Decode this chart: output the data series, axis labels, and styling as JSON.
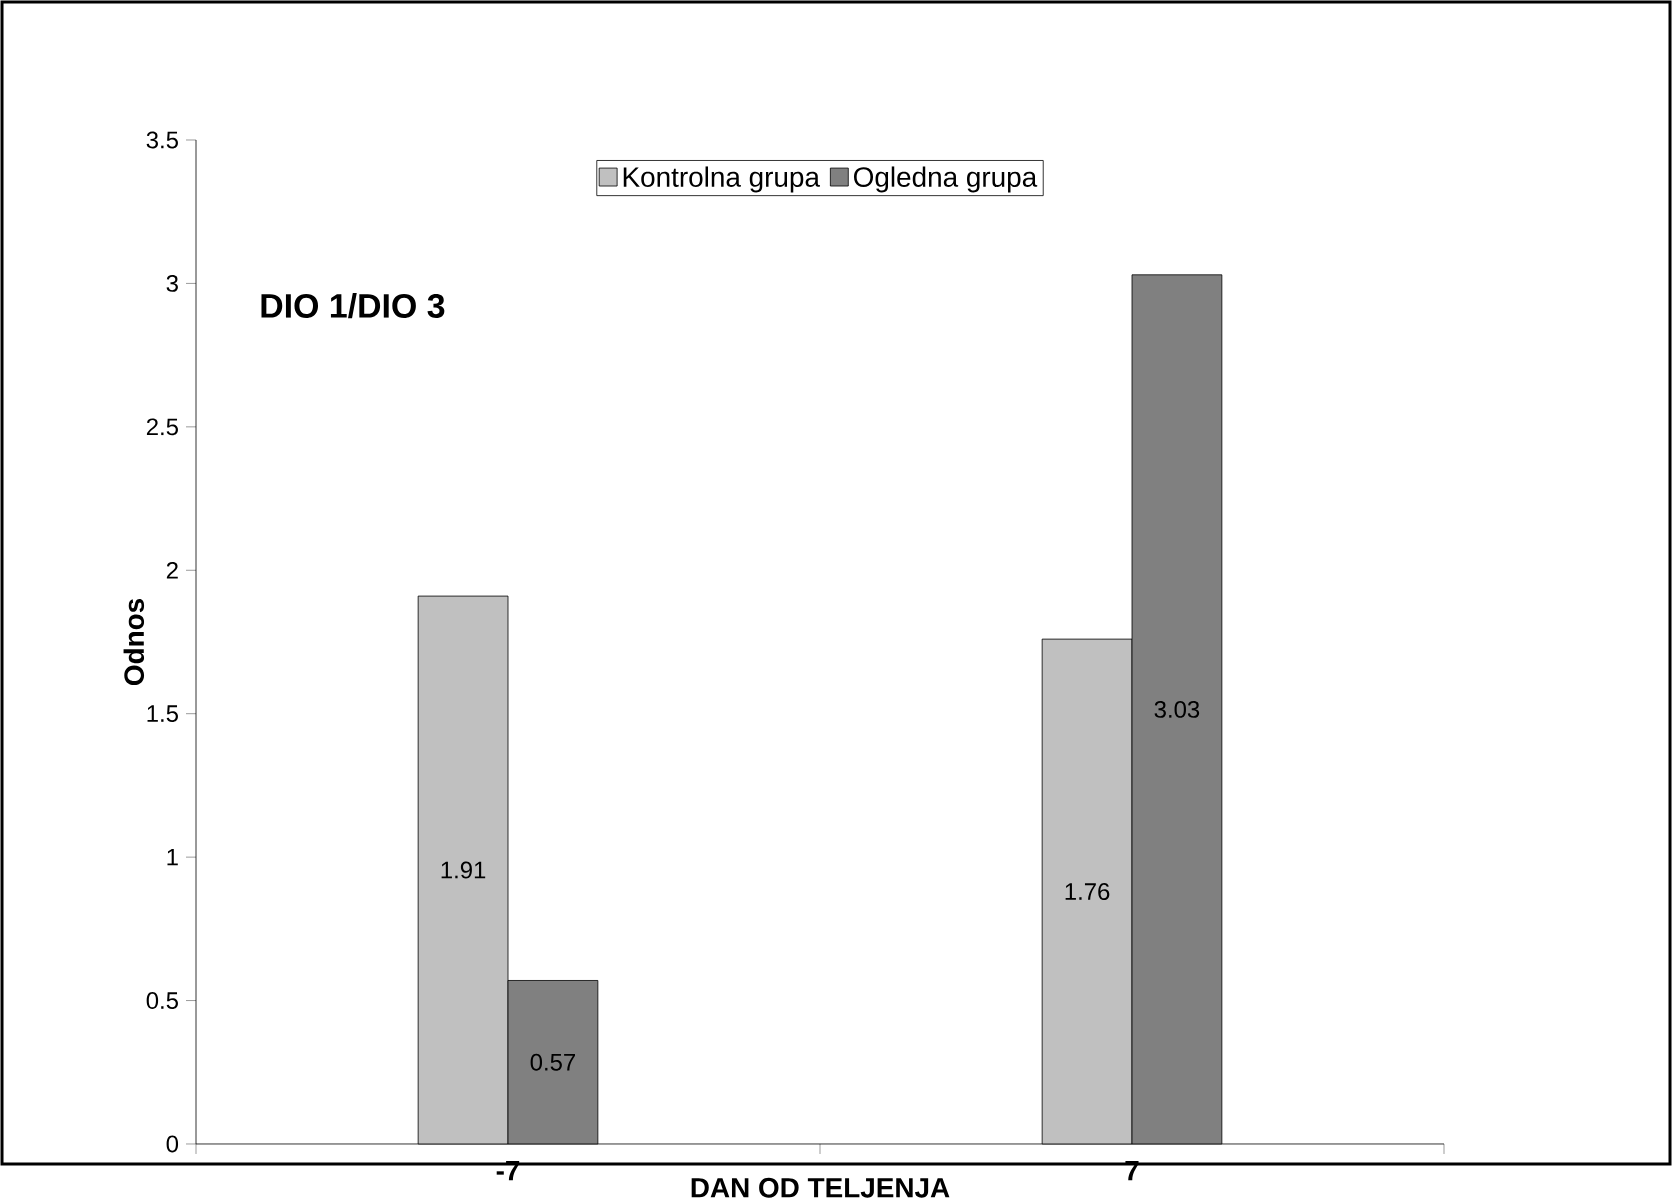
{
  "chart_data": {
    "type": "bar",
    "xlabel": "DAN OD TELJENJA",
    "ylabel": "Odnos",
    "annotations": [
      "DIO 1/DIO 3"
    ],
    "categories": [
      "-7",
      "7"
    ],
    "series": [
      {
        "name": "Kontrolna grupa",
        "color": "#c0c0c0",
        "values": [
          1.91,
          1.76
        ]
      },
      {
        "name": "Ogledna grupa",
        "color": "#808080",
        "values": [
          0.57,
          3.03
        ]
      }
    ],
    "ylim": [
      0,
      3.5
    ],
    "yticks": [
      0,
      0.5,
      1,
      1.5,
      2,
      2.5,
      3,
      3.5
    ],
    "legend": "top",
    "data_labels": true,
    "grid": false
  }
}
